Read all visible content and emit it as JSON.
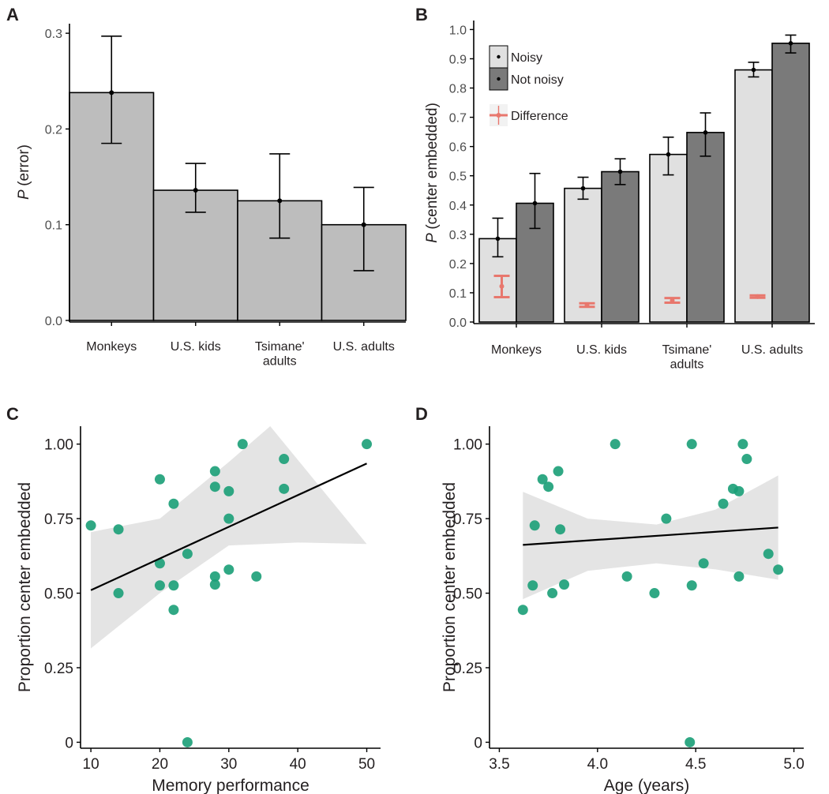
{
  "chart_data": [
    {
      "panel": "A",
      "type": "bar",
      "categories": [
        "Monkeys",
        "U.S. kids",
        "Tsimane'\nadults",
        "U.S. adults"
      ],
      "values": [
        0.238,
        0.136,
        0.125,
        0.1
      ],
      "error_low": [
        0.185,
        0.113,
        0.086,
        0.052
      ],
      "error_high": [
        0.297,
        0.164,
        0.174,
        0.139
      ],
      "ylabel_italic": "P",
      "ylabel_rest": "(error)",
      "xlabel": "",
      "ylim": [
        0,
        0.31
      ],
      "yticks": [
        0.0,
        0.1,
        0.2,
        0.3
      ],
      "ytick_labels": [
        "0.0",
        "0.1",
        "0.2",
        "0.3"
      ],
      "bar_color": "#bdbdbd",
      "grid": false
    },
    {
      "panel": "B",
      "type": "bar",
      "categories": [
        "Monkeys",
        "U.S. kids",
        "Tsimane'\nadults",
        "U.S. adults"
      ],
      "series": [
        {
          "name": "Noisy",
          "values": [
            0.285,
            0.457,
            0.573,
            0.862
          ],
          "error_low": [
            0.223,
            0.42,
            0.503,
            0.838
          ],
          "error_high": [
            0.355,
            0.495,
            0.632,
            0.888
          ],
          "color": "#e0e0e0"
        },
        {
          "name": "Not noisy",
          "values": [
            0.406,
            0.514,
            0.648,
            0.953
          ],
          "error_low": [
            0.32,
            0.47,
            0.567,
            0.92
          ],
          "error_high": [
            0.508,
            0.558,
            0.715,
            0.981
          ],
          "color": "#7a7a7a"
        }
      ],
      "difference": {
        "name": "Difference",
        "values": [
          0.122,
          0.058,
          0.074,
          0.087
        ],
        "error_low": [
          0.085,
          0.052,
          0.066,
          0.083
        ],
        "error_high": [
          0.158,
          0.064,
          0.082,
          0.091
        ],
        "color": "#e8776d"
      },
      "ylabel_italic": "P",
      "ylabel_rest": "(center embedded)",
      "xlabel": "",
      "ylim": [
        0,
        1.02
      ],
      "yticks": [
        0.0,
        0.1,
        0.2,
        0.3,
        0.4,
        0.5,
        0.6,
        0.7,
        0.8,
        0.9,
        1.0
      ],
      "ytick_labels": [
        "0.0",
        "0.1",
        "0.2",
        "0.3",
        "0.4",
        "0.5",
        "0.6",
        "0.7",
        "0.8",
        "0.9",
        "1.0"
      ],
      "legend_position": "top-left",
      "grid": false
    },
    {
      "panel": "C",
      "type": "scatter",
      "xlabel": "Memory performance",
      "ylabel": "Proportion center embedded",
      "xlim": [
        8.5,
        52
      ],
      "ylim": [
        -0.02,
        1.06
      ],
      "xticks": [
        10,
        20,
        30,
        40,
        50
      ],
      "xtick_labels": [
        "10",
        "20",
        "30",
        "40",
        "50"
      ],
      "yticks": [
        0,
        0.25,
        0.5,
        0.75,
        1.0
      ],
      "ytick_labels": [
        "0",
        "0.25",
        "0.50",
        "0.75",
        "1.00"
      ],
      "points": [
        [
          10,
          0.727
        ],
        [
          14,
          0.714
        ],
        [
          14,
          0.5
        ],
        [
          20,
          0.882
        ],
        [
          20,
          0.6
        ],
        [
          20,
          0.526
        ],
        [
          22,
          0.8
        ],
        [
          22,
          0.526
        ],
        [
          22,
          0.444
        ],
        [
          24,
          0.632
        ],
        [
          24,
          0.0
        ],
        [
          28,
          0.909
        ],
        [
          28,
          0.857
        ],
        [
          28,
          0.556
        ],
        [
          28,
          0.529
        ],
        [
          30,
          0.842
        ],
        [
          30,
          0.75
        ],
        [
          30,
          0.579
        ],
        [
          32,
          1.0
        ],
        [
          34,
          0.556
        ],
        [
          38,
          0.95
        ],
        [
          38,
          0.85
        ],
        [
          50,
          1.0
        ]
      ],
      "fit": {
        "x": [
          10,
          50
        ],
        "y": [
          0.51,
          0.935
        ]
      },
      "ci_upper": [
        [
          10,
          0.705
        ],
        [
          20,
          0.75
        ],
        [
          30,
          0.94
        ],
        [
          36,
          1.06
        ]
      ],
      "ci_lower": [
        [
          10,
          0.315
        ],
        [
          20,
          0.5
        ],
        [
          30,
          0.66
        ],
        [
          40,
          0.67
        ],
        [
          50,
          0.665
        ]
      ],
      "point_color": "#1a9e77",
      "band_color": "#e4e4e4",
      "line_color": "#000000",
      "grid": false
    },
    {
      "panel": "D",
      "type": "scatter",
      "xlabel": "Age (years)",
      "ylabel": "Proportion center embedded",
      "xlim": [
        3.45,
        5.05
      ],
      "ylim": [
        -0.02,
        1.06
      ],
      "xticks": [
        3.5,
        4.0,
        4.5,
        5.0
      ],
      "xtick_labels": [
        "3.5",
        "4.0",
        "4.5",
        "5.0"
      ],
      "yticks": [
        0,
        0.25,
        0.5,
        0.75,
        1.0
      ],
      "ytick_labels": [
        "0",
        "0.25",
        "0.50",
        "0.75",
        "1.00"
      ],
      "points": [
        [
          3.62,
          0.444
        ],
        [
          3.67,
          0.526
        ],
        [
          3.68,
          0.727
        ],
        [
          3.72,
          0.882
        ],
        [
          3.75,
          0.857
        ],
        [
          3.77,
          0.5
        ],
        [
          3.8,
          0.909
        ],
        [
          3.81,
          0.714
        ],
        [
          3.83,
          0.529
        ],
        [
          4.09,
          1.0
        ],
        [
          4.15,
          0.556
        ],
        [
          4.29,
          0.5
        ],
        [
          4.35,
          0.75
        ],
        [
          4.47,
          0.0
        ],
        [
          4.48,
          0.526
        ],
        [
          4.48,
          1.0
        ],
        [
          4.54,
          0.6
        ],
        [
          4.64,
          0.8
        ],
        [
          4.69,
          0.85
        ],
        [
          4.72,
          0.842
        ],
        [
          4.72,
          0.556
        ],
        [
          4.74,
          1.0
        ],
        [
          4.76,
          0.95
        ],
        [
          4.87,
          0.632
        ],
        [
          4.92,
          0.579
        ]
      ],
      "fit": {
        "x": [
          3.62,
          4.92
        ],
        "y": [
          0.662,
          0.72
        ]
      },
      "ci_upper": [
        [
          3.62,
          0.84
        ],
        [
          3.95,
          0.75
        ],
        [
          4.3,
          0.73
        ],
        [
          4.6,
          0.78
        ],
        [
          4.92,
          0.895
        ]
      ],
      "ci_lower": [
        [
          3.62,
          0.48
        ],
        [
          3.95,
          0.575
        ],
        [
          4.3,
          0.6
        ],
        [
          4.6,
          0.58
        ],
        [
          4.92,
          0.545
        ]
      ],
      "point_color": "#1a9e77",
      "band_color": "#e4e4e4",
      "line_color": "#000000",
      "grid": false
    }
  ],
  "panel_labels": [
    "A",
    "B",
    "C",
    "D"
  ]
}
